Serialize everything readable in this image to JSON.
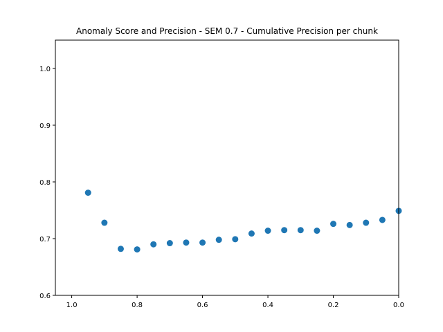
{
  "chart_data": {
    "type": "scatter",
    "title": "Anomaly Score and Precision - SEM 0.7 - Cumulative Precision per chunk",
    "xlabel": "",
    "ylabel": "",
    "xlim": [
      1.05,
      0.0
    ],
    "ylim": [
      0.6,
      1.05
    ],
    "x_inverted": true,
    "grid": false,
    "xticks": [
      1.0,
      0.8,
      0.6,
      0.4,
      0.2,
      0.0
    ],
    "xtick_labels": [
      "1.0",
      "0.8",
      "0.6",
      "0.4",
      "0.2",
      "0.0"
    ],
    "yticks": [
      0.6,
      0.7,
      0.8,
      0.9,
      1.0
    ],
    "ytick_labels": [
      "0.6",
      "0.7",
      "0.8",
      "0.9",
      "1.0"
    ],
    "marker_color": "#1f77b4",
    "x": [
      0.95,
      0.9,
      0.85,
      0.8,
      0.75,
      0.7,
      0.65,
      0.6,
      0.55,
      0.5,
      0.45,
      0.4,
      0.35,
      0.3,
      0.25,
      0.2,
      0.15,
      0.1,
      0.05,
      0.0
    ],
    "y": [
      0.781,
      0.728,
      0.682,
      0.681,
      0.69,
      0.692,
      0.693,
      0.693,
      0.698,
      0.699,
      0.709,
      0.714,
      0.715,
      0.715,
      0.714,
      0.726,
      0.724,
      0.728,
      0.733,
      0.749
    ]
  }
}
